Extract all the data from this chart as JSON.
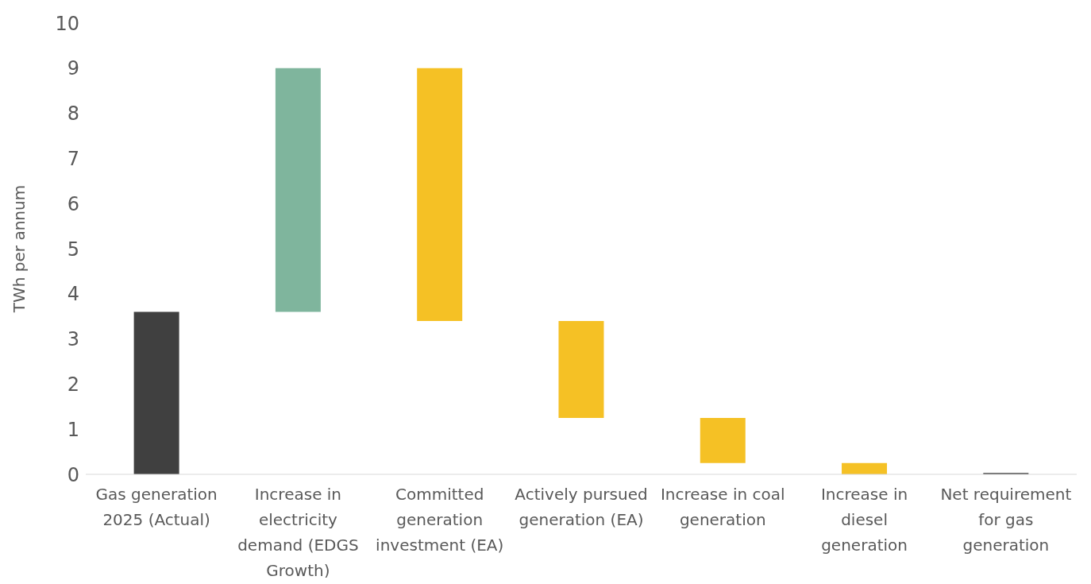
{
  "chart_data": {
    "type": "bar",
    "ylabel": "TWh per annum",
    "categories": [
      "Gas generation 2025 (Actual)",
      "Increase in electricity demand (EDGS Growth)",
      "Committed generation investment (EA)",
      "Actively pursued generation (EA)",
      "Increase in coal generation",
      "Increase in diesel generation",
      "Net requirement for gas generation"
    ],
    "values": [
      3.6,
      5.4,
      5.6,
      2.15,
      1.0,
      0.25,
      0.03
    ],
    "base": [
      0,
      3.6,
      3.4,
      1.25,
      0.25,
      0,
      0
    ],
    "colors": [
      "#404040",
      "#7fb59d",
      "#f5c125",
      "#f5c125",
      "#f5c125",
      "#f5c125",
      "#404040"
    ],
    "ylim": [
      0,
      10
    ],
    "yticks": [
      0,
      1,
      2,
      3,
      4,
      5,
      6,
      7,
      8,
      9,
      10
    ]
  }
}
